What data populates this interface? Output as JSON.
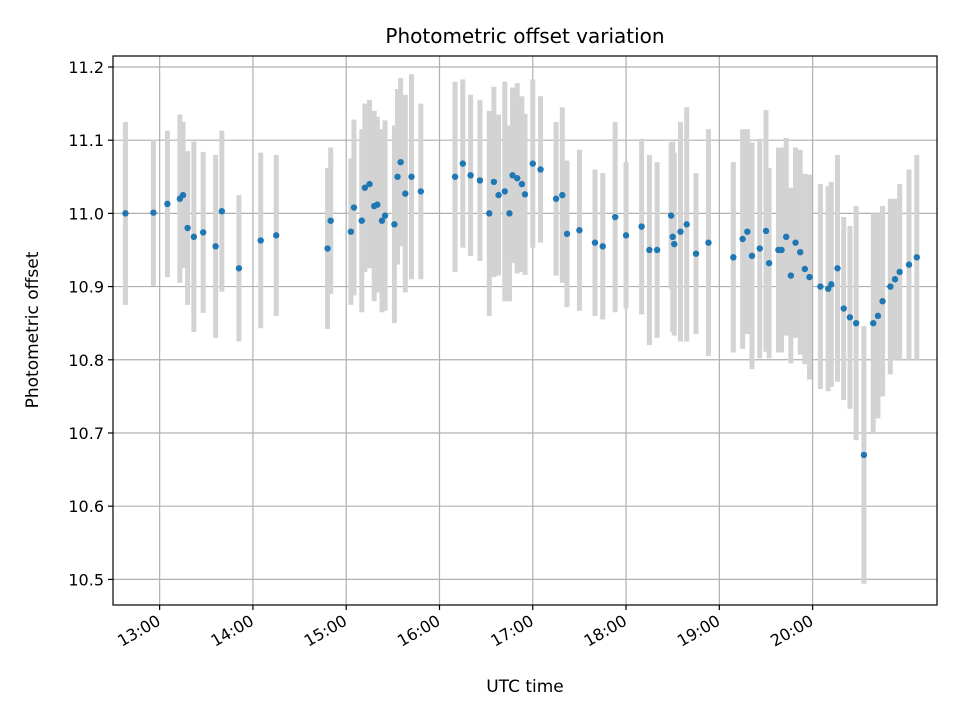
{
  "chart_data": {
    "type": "scatter",
    "title": "Photometric offset variation",
    "xlabel": "UTC time",
    "ylabel": "Photometric offset",
    "xlim": [
      "12:30",
      "21:20"
    ],
    "ylim": [
      10.465,
      11.215
    ],
    "x_ticks": [
      "13:00",
      "14:00",
      "15:00",
      "16:00",
      "17:00",
      "18:00",
      "19:00",
      "20:00"
    ],
    "y_ticks": [
      10.5,
      10.6,
      10.7,
      10.8,
      10.9,
      11.0,
      11.1,
      11.2
    ],
    "y_tick_labels": [
      "10.5",
      "10.6",
      "10.7",
      "10.8",
      "10.9",
      "11.0",
      "11.1",
      "11.2"
    ],
    "grid": true,
    "x_tick_rotation": "30°",
    "colors": {
      "point": "#1f77b4",
      "errorbar": "#d3d3d3",
      "grid": "#b0b0b0",
      "axes": "#000000"
    },
    "series": [
      {
        "x": [
          "12:38",
          "12:56",
          "13:05",
          "13:13",
          "13:15",
          "13:18",
          "13:22",
          "13:28",
          "13:36",
          "13:40",
          "13:51",
          "14:05",
          "14:15",
          "14:48",
          "14:50",
          "15:03",
          "15:05",
          "15:10",
          "15:12",
          "15:15",
          "15:18",
          "15:20",
          "15:23",
          "15:25",
          "15:31",
          "15:33",
          "15:35",
          "15:38",
          "15:42",
          "15:48",
          "16:10",
          "16:15",
          "16:20",
          "16:26",
          "16:32",
          "16:35",
          "16:38",
          "16:42",
          "16:45",
          "16:47",
          "16:50",
          "16:53",
          "16:55",
          "17:00",
          "17:05",
          "17:15",
          "17:19",
          "17:22",
          "17:30",
          "17:40",
          "17:45",
          "17:53",
          "18:00",
          "18:10",
          "18:15",
          "18:20",
          "18:29",
          "18:30",
          "18:31",
          "18:35",
          "18:39",
          "18:45",
          "18:53",
          "19:09",
          "19:15",
          "19:18",
          "19:21",
          "19:26",
          "19:30",
          "19:32",
          "19:38",
          "19:40",
          "19:43",
          "19:46",
          "19:49",
          "19:52",
          "19:55",
          "19:58",
          "20:05",
          "20:10",
          "20:12",
          "20:16",
          "20:20",
          "20:24",
          "20:28",
          "20:33",
          "20:39",
          "20:42",
          "20:45",
          "20:50",
          "20:53",
          "20:56",
          "21:02",
          "21:07"
        ],
        "y": [
          11.0,
          11.001,
          11.013,
          11.02,
          11.025,
          10.98,
          10.968,
          10.974,
          10.955,
          11.003,
          10.925,
          10.963,
          10.97,
          10.952,
          10.99,
          10.975,
          11.008,
          10.99,
          11.035,
          11.04,
          11.01,
          11.012,
          10.99,
          10.997,
          10.985,
          11.05,
          11.07,
          11.027,
          11.05,
          11.03,
          11.05,
          11.068,
          11.052,
          11.045,
          11.0,
          11.043,
          11.025,
          11.03,
          11.0,
          11.052,
          11.048,
          11.04,
          11.026,
          11.068,
          11.06,
          11.02,
          11.025,
          10.972,
          10.977,
          10.96,
          10.955,
          10.995,
          10.97,
          10.982,
          10.95,
          10.95,
          10.997,
          10.968,
          10.958,
          10.975,
          10.985,
          10.945,
          10.96,
          10.94,
          10.965,
          10.975,
          10.942,
          10.952,
          10.976,
          10.932,
          10.95,
          10.95,
          10.968,
          10.915,
          10.96,
          10.947,
          10.924,
          10.913,
          10.9,
          10.897,
          10.903,
          10.925,
          10.87,
          10.858,
          10.85,
          10.67,
          10.85,
          10.86,
          10.88,
          10.9,
          10.91,
          10.92,
          10.93,
          10.94
        ],
        "yerr": [
          0.125,
          0.1,
          0.1,
          0.115,
          0.1,
          0.105,
          0.13,
          0.11,
          0.125,
          0.11,
          0.1,
          0.12,
          0.11,
          0.11,
          0.1,
          0.1,
          0.12,
          0.125,
          0.115,
          0.115,
          0.13,
          0.12,
          0.125,
          0.13,
          0.135,
          0.12,
          0.115,
          0.135,
          0.14,
          0.12,
          0.13,
          0.115,
          0.11,
          0.11,
          0.14,
          0.13,
          0.11,
          0.15,
          0.12,
          0.12,
          0.13,
          0.12,
          0.11,
          0.115,
          0.1,
          0.105,
          0.12,
          0.1,
          0.11,
          0.1,
          0.1,
          0.13,
          0.1,
          0.12,
          0.13,
          0.12,
          0.1,
          0.13,
          0.125,
          0.15,
          0.16,
          0.11,
          0.155,
          0.13,
          0.15,
          0.14,
          0.155,
          0.15,
          0.165,
          0.13,
          0.14,
          0.14,
          0.135,
          0.12,
          0.13,
          0.14,
          0.13,
          0.14,
          0.14,
          0.14,
          0.14,
          0.155,
          0.125,
          0.125,
          0.16,
          0.176,
          0.15,
          0.14,
          0.13,
          0.12,
          0.11,
          0.12,
          0.13,
          0.14
        ]
      }
    ]
  }
}
